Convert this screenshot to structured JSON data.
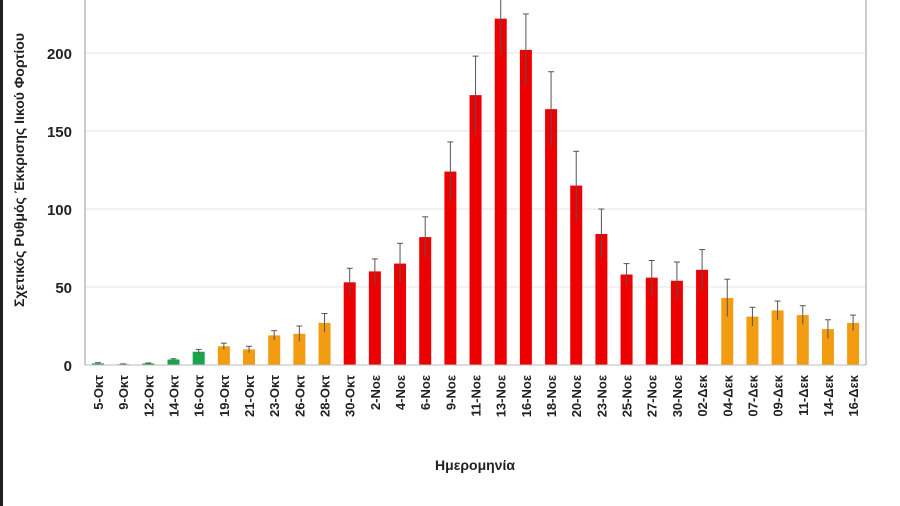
{
  "chart_data": {
    "type": "bar",
    "title": "",
    "xlabel": "Ημερομηνία",
    "ylabel": "Σχετικός Ρυθμός Έκκρισης Ιικού Φορτίου",
    "ylim": [
      0,
      250
    ],
    "yticks": [
      0,
      50,
      100,
      150,
      200
    ],
    "grid": true,
    "categories": [
      "5-Οκτ",
      "9-Οκτ",
      "12-Οκτ",
      "14-Οκτ",
      "16-Οκτ",
      "19-Οκτ",
      "21-Οκτ",
      "23-Οκτ",
      "26-Οκτ",
      "28-Οκτ",
      "30-Οκτ",
      "2-Νοε",
      "4-Νοε",
      "6-Νοε",
      "9-Νοε",
      "11-Νοε",
      "13-Νοε",
      "16-Νοε",
      "18-Νοε",
      "20-Νοε",
      "23-Νοε",
      "25-Νοε",
      "27-Νοε",
      "30-Νοε",
      "02-Δεκ",
      "04-Δεκ",
      "07-Δεκ",
      "09-Δεκ",
      "11-Δεκ",
      "14-Δεκ",
      "16-Δεκ"
    ],
    "values": [
      1,
      0.5,
      1,
      3.5,
      8.5,
      12,
      10,
      19,
      20,
      27,
      53,
      60,
      65,
      82,
      124,
      173,
      222,
      202,
      164,
      115,
      84,
      58,
      56,
      54,
      61,
      43,
      31,
      35,
      32,
      23,
      27
    ],
    "error_upper": [
      1.5,
      0.7,
      1.3,
      4,
      10,
      14,
      12,
      22,
      25,
      33,
      62,
      68,
      78,
      95,
      143,
      198,
      245,
      225,
      188,
      137,
      100,
      65,
      67,
      66,
      74,
      55,
      37,
      41,
      38,
      29,
      32
    ],
    "bar_colors": [
      "green",
      "green",
      "green",
      "green",
      "green",
      "orange",
      "orange",
      "orange",
      "orange",
      "orange",
      "red",
      "red",
      "red",
      "red",
      "red",
      "red",
      "red",
      "red",
      "red",
      "red",
      "red",
      "red",
      "red",
      "red",
      "red",
      "orange",
      "orange",
      "orange",
      "orange",
      "orange",
      "orange"
    ],
    "colors": {
      "green": "#1aa34a",
      "orange": "#f39c12",
      "red": "#ee0000",
      "grid": "#e6e6e6",
      "errorbar": "#555555"
    }
  }
}
